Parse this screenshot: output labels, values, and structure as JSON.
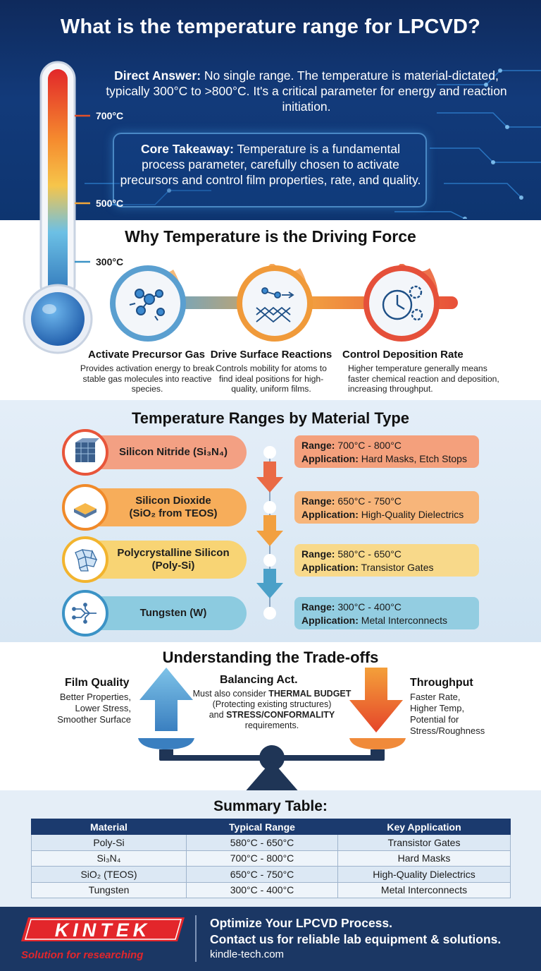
{
  "header": {
    "title": "What is the temperature range for LPCVD?",
    "direct_answer_label": "Direct Answer:",
    "direct_answer_text": "No single range. The temperature is material-dictated, typically 300°C to >800°C. It's a critical parameter for energy and reaction initiation.",
    "takeaway_label": "Core Takeaway:",
    "takeaway_text": "Temperature is a fundamental process parameter, carefully chosen to activate precursors and control film properties, rate, and quality."
  },
  "thermometer": {
    "marks": [
      "700°C",
      "500°C",
      "300°C"
    ],
    "icon": "thermometer-icon"
  },
  "driving_force": {
    "title": "Why Temperature is the Driving Force",
    "items": [
      {
        "title": "Activate Precursor Gas",
        "desc": "Provides activation energy to break stable gas molecules into reactive species.",
        "icon": "molecule-icon"
      },
      {
        "title": "Drive Surface Reactions",
        "desc": "Controls mobility for atoms to find ideal positions for high-quality, uniform films.",
        "icon": "lattice-icon"
      },
      {
        "title": "Control Deposition Rate",
        "desc": "Higher temperature generally means faster chemical reaction and deposition, increasing throughput.",
        "icon": "clock-gear-icon"
      }
    ]
  },
  "materials": {
    "title": "Temperature Ranges by Material Type",
    "range_label": "Range:",
    "application_label": "Application:",
    "items": [
      {
        "name_line1": "Silicon Nitride (Si₃N₄)",
        "name_line2": "",
        "range": "700°C - 800°C",
        "application": "Hard Masks, Etch Stops",
        "color": "#e8553a",
        "pill": "#f08a66",
        "box": "#f39a78",
        "icon": "crystal-cube-icon"
      },
      {
        "name_line1": "Silicon Dioxide",
        "name_line2": "(SiO₂ from TEOS)",
        "range": "650°C - 750°C",
        "application": "High-Quality Dielectrics",
        "color": "#f08a2a",
        "pill": "#f6a74f",
        "box": "#f7b170",
        "icon": "layer-icon"
      },
      {
        "name_line1": "Polycrystalline Silicon",
        "name_line2": "(Poly-Si)",
        "range": "580°C - 650°C",
        "application": "Transistor Gates",
        "color": "#f2b42e",
        "pill": "#f7d06a",
        "box": "#f8d77e",
        "icon": "grains-icon"
      },
      {
        "name_line1": "Tungsten (W)",
        "name_line2": "",
        "range": "300°C - 400°C",
        "application": "Metal Interconnects",
        "color": "#3b93c6",
        "pill": "#7cc3dc",
        "box": "#8fcbe0",
        "icon": "circuit-icon"
      }
    ]
  },
  "tradeoffs": {
    "title": "Understanding the Trade-offs",
    "left_head": "Film Quality",
    "left_lines": [
      "Better Properties,",
      "Lower Stress,",
      "Smoother Surface"
    ],
    "center_head": "Balancing Act.",
    "center_pre": "Must also consider ",
    "center_bold1": "THERMAL BUDGET",
    "center_mid": "(Protecting existing structures)",
    "center_and": "and ",
    "center_bold2": "STRESS/CONFORMALITY",
    "center_post": "requirements.",
    "right_head": "Throughput",
    "right_lines": [
      "Faster Rate,",
      "Higher Temp,",
      "Potential for",
      "Stress/Roughness"
    ]
  },
  "summary": {
    "title": "Summary Table:",
    "headers": [
      "Material",
      "Typical Range",
      "Key Application"
    ],
    "rows": [
      [
        "Poly-Si",
        "580°C - 650°C",
        "Transistor Gates"
      ],
      [
        "Si₃N₄",
        "700°C - 800°C",
        "Hard Masks"
      ],
      [
        "SiO₂ (TEOS)",
        "650°C - 750°C",
        "High-Quality Dielectrics"
      ],
      [
        "Tungsten",
        "300°C - 400°C",
        "Metal Interconnects"
      ]
    ]
  },
  "footer": {
    "logo_text": "KINTEK",
    "tagline": "Solution for researching",
    "cta_line1": "Optimize Your LPCVD Process.",
    "cta_line2": "Contact us for reliable lab equipment & solutions.",
    "site": "kindle-tech.com"
  }
}
